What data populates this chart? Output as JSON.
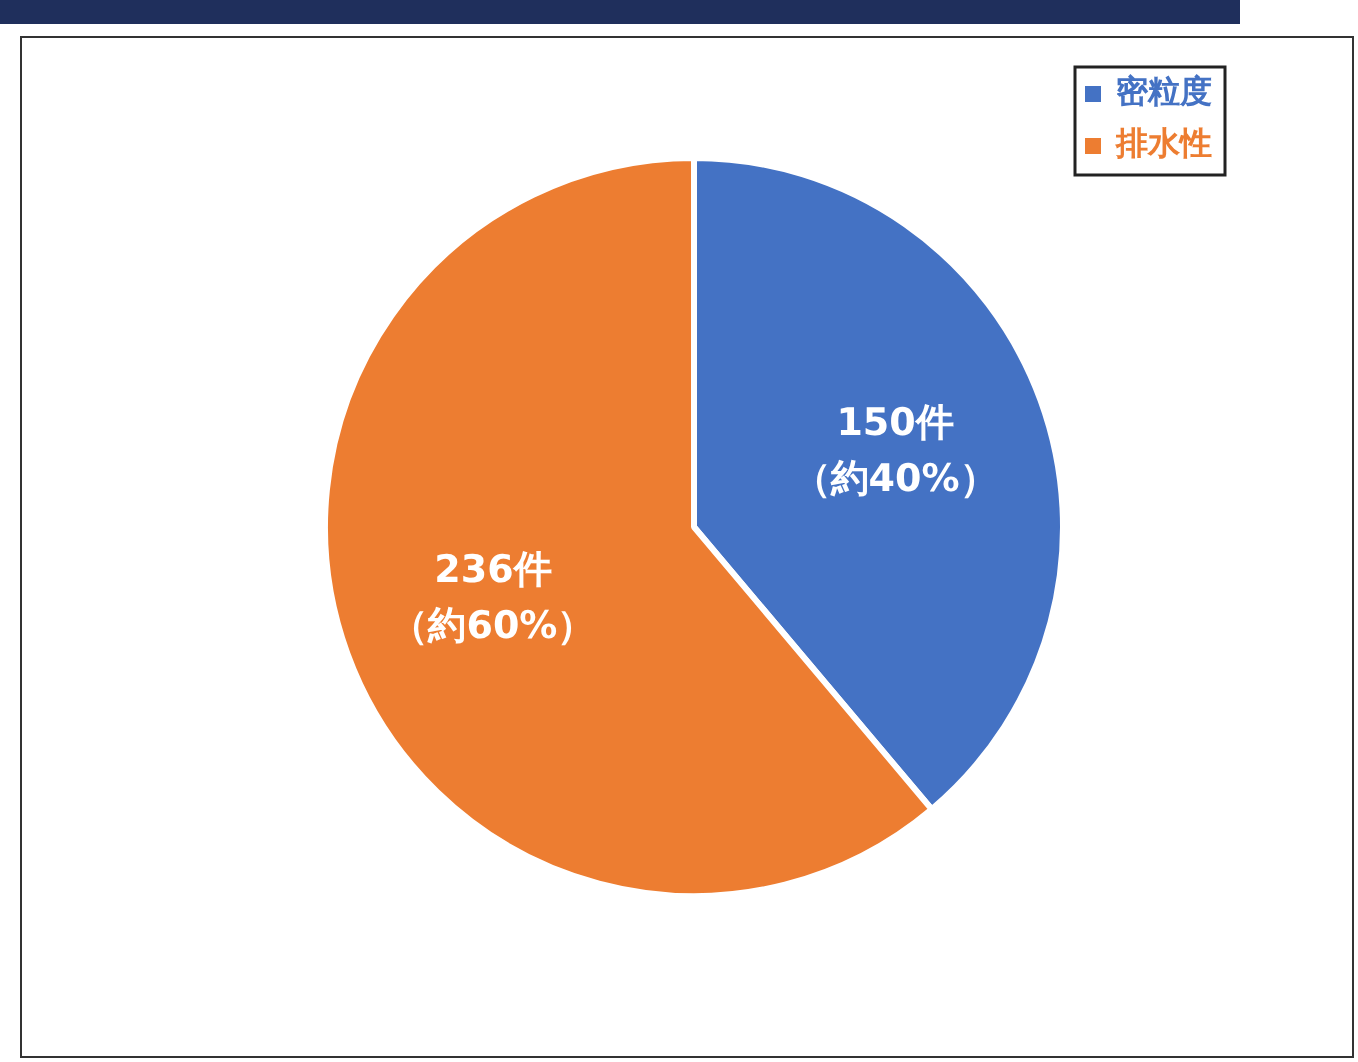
{
  "chart_data": {
    "type": "pie",
    "categories": [
      "密粒度",
      "排水性"
    ],
    "values": [
      150,
      236
    ],
    "colors": [
      "#4472c4",
      "#ed7d31"
    ],
    "value_labels": [
      "150件（約40%）",
      "236件（約60%）"
    ],
    "legend": "top right"
  }
}
